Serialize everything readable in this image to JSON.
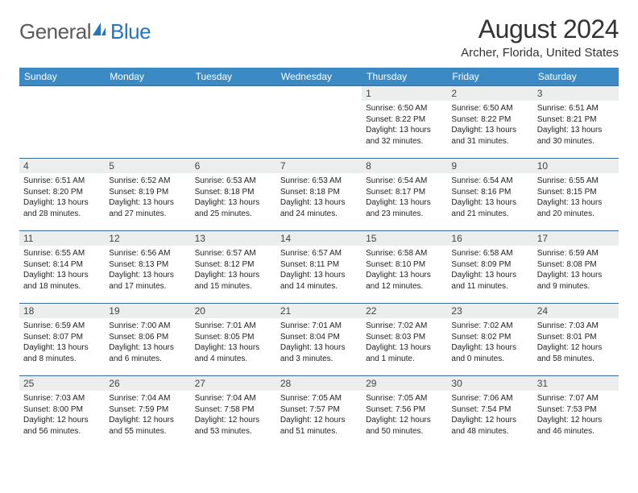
{
  "brand": {
    "name1": "General",
    "name2": "Blue"
  },
  "title": "August 2024",
  "location": "Archer, Florida, United States",
  "weekdays": [
    "Sunday",
    "Monday",
    "Tuesday",
    "Wednesday",
    "Thursday",
    "Friday",
    "Saturday"
  ],
  "colors": {
    "header_bg": "#3b8ac4",
    "header_text": "#ffffff",
    "daynum_bg": "#eceded",
    "row_border": "#3b6a9a",
    "brand_gray": "#5a5a5a",
    "brand_blue": "#2176bd"
  },
  "weeks": [
    [
      {
        "num": "",
        "sunrise": "",
        "sunset": "",
        "daylight1": "",
        "daylight2": ""
      },
      {
        "num": "",
        "sunrise": "",
        "sunset": "",
        "daylight1": "",
        "daylight2": ""
      },
      {
        "num": "",
        "sunrise": "",
        "sunset": "",
        "daylight1": "",
        "daylight2": ""
      },
      {
        "num": "",
        "sunrise": "",
        "sunset": "",
        "daylight1": "",
        "daylight2": ""
      },
      {
        "num": "1",
        "sunrise": "Sunrise: 6:50 AM",
        "sunset": "Sunset: 8:22 PM",
        "daylight1": "Daylight: 13 hours",
        "daylight2": "and 32 minutes."
      },
      {
        "num": "2",
        "sunrise": "Sunrise: 6:50 AM",
        "sunset": "Sunset: 8:22 PM",
        "daylight1": "Daylight: 13 hours",
        "daylight2": "and 31 minutes."
      },
      {
        "num": "3",
        "sunrise": "Sunrise: 6:51 AM",
        "sunset": "Sunset: 8:21 PM",
        "daylight1": "Daylight: 13 hours",
        "daylight2": "and 30 minutes."
      }
    ],
    [
      {
        "num": "4",
        "sunrise": "Sunrise: 6:51 AM",
        "sunset": "Sunset: 8:20 PM",
        "daylight1": "Daylight: 13 hours",
        "daylight2": "and 28 minutes."
      },
      {
        "num": "5",
        "sunrise": "Sunrise: 6:52 AM",
        "sunset": "Sunset: 8:19 PM",
        "daylight1": "Daylight: 13 hours",
        "daylight2": "and 27 minutes."
      },
      {
        "num": "6",
        "sunrise": "Sunrise: 6:53 AM",
        "sunset": "Sunset: 8:18 PM",
        "daylight1": "Daylight: 13 hours",
        "daylight2": "and 25 minutes."
      },
      {
        "num": "7",
        "sunrise": "Sunrise: 6:53 AM",
        "sunset": "Sunset: 8:18 PM",
        "daylight1": "Daylight: 13 hours",
        "daylight2": "and 24 minutes."
      },
      {
        "num": "8",
        "sunrise": "Sunrise: 6:54 AM",
        "sunset": "Sunset: 8:17 PM",
        "daylight1": "Daylight: 13 hours",
        "daylight2": "and 23 minutes."
      },
      {
        "num": "9",
        "sunrise": "Sunrise: 6:54 AM",
        "sunset": "Sunset: 8:16 PM",
        "daylight1": "Daylight: 13 hours",
        "daylight2": "and 21 minutes."
      },
      {
        "num": "10",
        "sunrise": "Sunrise: 6:55 AM",
        "sunset": "Sunset: 8:15 PM",
        "daylight1": "Daylight: 13 hours",
        "daylight2": "and 20 minutes."
      }
    ],
    [
      {
        "num": "11",
        "sunrise": "Sunrise: 6:55 AM",
        "sunset": "Sunset: 8:14 PM",
        "daylight1": "Daylight: 13 hours",
        "daylight2": "and 18 minutes."
      },
      {
        "num": "12",
        "sunrise": "Sunrise: 6:56 AM",
        "sunset": "Sunset: 8:13 PM",
        "daylight1": "Daylight: 13 hours",
        "daylight2": "and 17 minutes."
      },
      {
        "num": "13",
        "sunrise": "Sunrise: 6:57 AM",
        "sunset": "Sunset: 8:12 PM",
        "daylight1": "Daylight: 13 hours",
        "daylight2": "and 15 minutes."
      },
      {
        "num": "14",
        "sunrise": "Sunrise: 6:57 AM",
        "sunset": "Sunset: 8:11 PM",
        "daylight1": "Daylight: 13 hours",
        "daylight2": "and 14 minutes."
      },
      {
        "num": "15",
        "sunrise": "Sunrise: 6:58 AM",
        "sunset": "Sunset: 8:10 PM",
        "daylight1": "Daylight: 13 hours",
        "daylight2": "and 12 minutes."
      },
      {
        "num": "16",
        "sunrise": "Sunrise: 6:58 AM",
        "sunset": "Sunset: 8:09 PM",
        "daylight1": "Daylight: 13 hours",
        "daylight2": "and 11 minutes."
      },
      {
        "num": "17",
        "sunrise": "Sunrise: 6:59 AM",
        "sunset": "Sunset: 8:08 PM",
        "daylight1": "Daylight: 13 hours",
        "daylight2": "and 9 minutes."
      }
    ],
    [
      {
        "num": "18",
        "sunrise": "Sunrise: 6:59 AM",
        "sunset": "Sunset: 8:07 PM",
        "daylight1": "Daylight: 13 hours",
        "daylight2": "and 8 minutes."
      },
      {
        "num": "19",
        "sunrise": "Sunrise: 7:00 AM",
        "sunset": "Sunset: 8:06 PM",
        "daylight1": "Daylight: 13 hours",
        "daylight2": "and 6 minutes."
      },
      {
        "num": "20",
        "sunrise": "Sunrise: 7:01 AM",
        "sunset": "Sunset: 8:05 PM",
        "daylight1": "Daylight: 13 hours",
        "daylight2": "and 4 minutes."
      },
      {
        "num": "21",
        "sunrise": "Sunrise: 7:01 AM",
        "sunset": "Sunset: 8:04 PM",
        "daylight1": "Daylight: 13 hours",
        "daylight2": "and 3 minutes."
      },
      {
        "num": "22",
        "sunrise": "Sunrise: 7:02 AM",
        "sunset": "Sunset: 8:03 PM",
        "daylight1": "Daylight: 13 hours",
        "daylight2": "and 1 minute."
      },
      {
        "num": "23",
        "sunrise": "Sunrise: 7:02 AM",
        "sunset": "Sunset: 8:02 PM",
        "daylight1": "Daylight: 13 hours",
        "daylight2": "and 0 minutes."
      },
      {
        "num": "24",
        "sunrise": "Sunrise: 7:03 AM",
        "sunset": "Sunset: 8:01 PM",
        "daylight1": "Daylight: 12 hours",
        "daylight2": "and 58 minutes."
      }
    ],
    [
      {
        "num": "25",
        "sunrise": "Sunrise: 7:03 AM",
        "sunset": "Sunset: 8:00 PM",
        "daylight1": "Daylight: 12 hours",
        "daylight2": "and 56 minutes."
      },
      {
        "num": "26",
        "sunrise": "Sunrise: 7:04 AM",
        "sunset": "Sunset: 7:59 PM",
        "daylight1": "Daylight: 12 hours",
        "daylight2": "and 55 minutes."
      },
      {
        "num": "27",
        "sunrise": "Sunrise: 7:04 AM",
        "sunset": "Sunset: 7:58 PM",
        "daylight1": "Daylight: 12 hours",
        "daylight2": "and 53 minutes."
      },
      {
        "num": "28",
        "sunrise": "Sunrise: 7:05 AM",
        "sunset": "Sunset: 7:57 PM",
        "daylight1": "Daylight: 12 hours",
        "daylight2": "and 51 minutes."
      },
      {
        "num": "29",
        "sunrise": "Sunrise: 7:05 AM",
        "sunset": "Sunset: 7:56 PM",
        "daylight1": "Daylight: 12 hours",
        "daylight2": "and 50 minutes."
      },
      {
        "num": "30",
        "sunrise": "Sunrise: 7:06 AM",
        "sunset": "Sunset: 7:54 PM",
        "daylight1": "Daylight: 12 hours",
        "daylight2": "and 48 minutes."
      },
      {
        "num": "31",
        "sunrise": "Sunrise: 7:07 AM",
        "sunset": "Sunset: 7:53 PM",
        "daylight1": "Daylight: 12 hours",
        "daylight2": "and 46 minutes."
      }
    ]
  ]
}
